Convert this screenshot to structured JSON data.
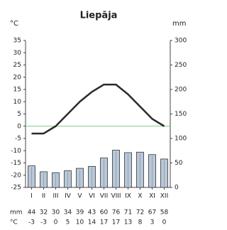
{
  "chart_data": {
    "type": "climograph",
    "title": "Liepāja",
    "y_label": "°C",
    "y2_label": "mm",
    "categories": [
      "I",
      "II",
      "III",
      "IV",
      "V",
      "VI",
      "VII",
      "VIII",
      "IX",
      "X",
      "XI",
      "XII"
    ],
    "series": [
      {
        "name": "mm",
        "type": "bar",
        "axis": "y2",
        "color": "#b8c8da",
        "values": [
          44,
          32,
          30,
          34,
          39,
          43,
          60,
          76,
          71,
          72,
          67,
          58
        ]
      },
      {
        "name": "°C",
        "type": "line",
        "color": "#2a2a2a",
        "values": [
          -3,
          -3,
          0,
          5,
          10,
          14,
          17,
          17,
          13,
          8,
          3,
          0
        ]
      }
    ],
    "ylim": [
      -25,
      35
    ],
    "yticks": [
      35,
      30,
      25,
      20,
      15,
      10,
      5,
      0,
      -5,
      -10,
      -15,
      -20,
      -25
    ],
    "y2lim": [
      0,
      300
    ],
    "y2ticks": [
      300,
      250,
      200,
      150,
      100,
      50,
      0
    ],
    "zero_line_color": "#7fc97f"
  }
}
